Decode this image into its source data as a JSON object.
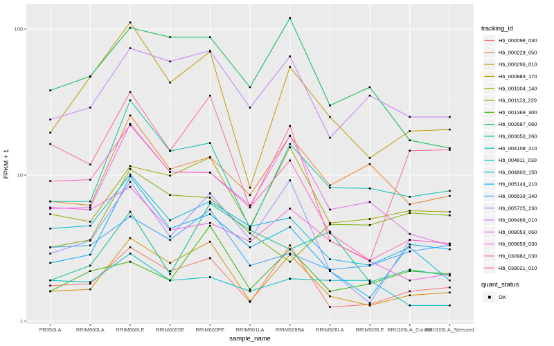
{
  "chart_data": {
    "type": "line",
    "title": "",
    "xlabel": "sample_name",
    "ylabel": "FPKM + 1",
    "x_categories": [
      "PB350LA",
      "RRIM600LA",
      "RRIM600LE",
      "RRIM600SE",
      "RRIM600PE",
      "RRIM901LA",
      "RRIM928BA",
      "RRIM928LA",
      "RRIM928LE",
      "RRII105LA_Control",
      "RRII105LA_Stressed"
    ],
    "y_axis": {
      "scale": "log10",
      "tick_labels": [
        "1",
        "10",
        "100"
      ],
      "tick_values": [
        1,
        10,
        100
      ],
      "minor_values": [
        3.1623,
        31.623
      ],
      "ylim": [
        1,
        150
      ],
      "grid": "on"
    },
    "legend_title": "tracking_id",
    "quant_legend": {
      "title": "quant_status",
      "items": [
        "OK"
      ]
    },
    "marker": {
      "shape": "square",
      "color": "#000000"
    },
    "panel_color": "#EBEBEB",
    "grid_color": "#FFFFFF",
    "legend_key_color": "#F2F2F2",
    "series": [
      {
        "name": "Hb_000098_030",
        "color": "#F8766D",
        "values": [
          1.75,
          1.8,
          3.2,
          2.2,
          2.7,
          1.35,
          3.3,
          1.25,
          1.3,
          1.6,
          1.7
        ]
      },
      {
        "name": "Hb_000229_050",
        "color": "#EA8331",
        "values": [
          6.6,
          6.2,
          25.6,
          11.0,
          13.3,
          7.3,
          18.5,
          8.5,
          11.9,
          6.3,
          7.2
        ]
      },
      {
        "name": "Hb_000296_010",
        "color": "#D89000",
        "values": [
          1.6,
          1.65,
          3.7,
          2.5,
          3.5,
          1.37,
          2.85,
          1.48,
          1.28,
          1.5,
          1.57
        ]
      },
      {
        "name": "Hb_000883_170",
        "color": "#C09B00",
        "values": [
          19.5,
          47,
          111,
          43,
          70,
          8.2,
          55,
          25,
          13.1,
          20,
          20.5
        ]
      },
      {
        "name": "Hb_001004_140",
        "color": "#A3A500",
        "values": [
          5.4,
          4.8,
          11.5,
          9.9,
          13.2,
          4.4,
          15.5,
          4.7,
          5.0,
          5.7,
          5.6
        ]
      },
      {
        "name": "Hb_001123_220",
        "color": "#7CAE00",
        "values": [
          3.2,
          3.6,
          11.0,
          7.3,
          7.0,
          4.0,
          2.55,
          4.6,
          4.55,
          5.5,
          5.3
        ]
      },
      {
        "name": "Hb_001369_300",
        "color": "#39B600",
        "values": [
          1.6,
          2.2,
          2.55,
          1.9,
          4.5,
          1.65,
          3.1,
          1.6,
          1.8,
          2.2,
          2.1
        ]
      },
      {
        "name": "Hb_002687_060",
        "color": "#00BB4E",
        "values": [
          38,
          47.5,
          102,
          88,
          88,
          40,
          119,
          30,
          40,
          17.3,
          15.3
        ]
      },
      {
        "name": "Hb_003050_260",
        "color": "#00C087",
        "values": [
          1.9,
          2.4,
          5.6,
          2.1,
          6.4,
          4.2,
          3.1,
          4.1,
          1.85,
          2.25,
          2.05
        ]
      },
      {
        "name": "Hb_004108_210",
        "color": "#00C1A9",
        "values": [
          6.6,
          6.6,
          32.5,
          14.6,
          16.6,
          4.3,
          16.3,
          8.2,
          8.1,
          7.1,
          7.8
        ]
      },
      {
        "name": "Hb_004611_030",
        "color": "#00BFC4",
        "values": [
          1.9,
          1.85,
          2.9,
          1.9,
          2.0,
          1.6,
          1.95,
          1.9,
          1.9,
          1.28,
          1.28
        ]
      },
      {
        "name": "Hb_004800_150",
        "color": "#00BAE0",
        "values": [
          4.3,
          4.5,
          10.1,
          4.9,
          6.6,
          4.45,
          5.1,
          2.65,
          2.42,
          3.2,
          1.9
        ]
      },
      {
        "name": "Hb_005144_210",
        "color": "#00B0F6",
        "values": [
          2.5,
          2.85,
          9.8,
          4.3,
          5.4,
          3.2,
          4.4,
          2.2,
          1.45,
          3.35,
          3.1
        ]
      },
      {
        "name": "Hb_005539_340",
        "color": "#35A2FF",
        "values": [
          3.2,
          3.3,
          5.2,
          3.6,
          5.8,
          2.4,
          2.9,
          2.25,
          2.4,
          3.0,
          3.3
        ]
      },
      {
        "name": "Hb_005725_230",
        "color": "#9590FF",
        "values": [
          2.9,
          3.55,
          9.0,
          3.8,
          7.5,
          3.65,
          9.2,
          2.2,
          1.33,
          3.6,
          3.4
        ]
      },
      {
        "name": "Hb_006468_010",
        "color": "#C77CFF",
        "values": [
          24,
          29,
          74,
          60,
          71,
          29,
          65,
          18,
          35,
          25,
          25
        ]
      },
      {
        "name": "Hb_008053_060",
        "color": "#E76BF3",
        "values": [
          5.9,
          6.0,
          22.4,
          10.5,
          10.4,
          6.2,
          18.6,
          5.8,
          6.55,
          3.95,
          3.3
        ]
      },
      {
        "name": "Hb_009659_030",
        "color": "#FA62DB",
        "values": [
          6.0,
          5.8,
          8.3,
          4.2,
          4.7,
          3.5,
          5.9,
          3.55,
          2.57,
          1.9,
          2.1
        ]
      },
      {
        "name": "Hb_030982_030",
        "color": "#FF62BC",
        "values": [
          9.1,
          9.3,
          22.0,
          10.5,
          10.4,
          6.0,
          12.6,
          4.0,
          2.6,
          3.6,
          3.4
        ]
      },
      {
        "name": "Hb_039021_010",
        "color": "#FF6A98",
        "values": [
          16.3,
          11.8,
          37,
          14.7,
          35,
          6.0,
          21.7,
          3.55,
          2.6,
          14.7,
          14.9
        ]
      }
    ]
  }
}
